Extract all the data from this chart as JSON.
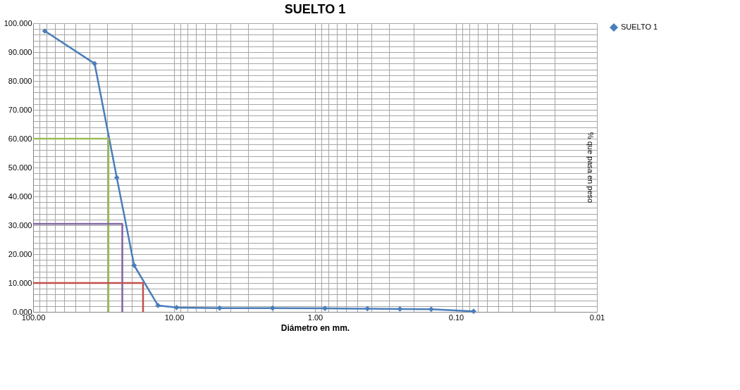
{
  "chart_data": {
    "type": "line",
    "title": "SUELTO 1",
    "xlabel": "Diámetro en mm.",
    "ylabel": "% que pasa en peso",
    "log": "x",
    "grid": true,
    "legend": "right",
    "marker": "diamond",
    "line_style": "solid",
    "xlim": [
      100,
      0.01
    ],
    "xticks": [
      {
        "value": 100,
        "label": "100.00"
      },
      {
        "value": 90,
        "label": null
      },
      {
        "value": 80,
        "label": null
      },
      {
        "value": 70,
        "label": null
      },
      {
        "value": 60,
        "label": null
      },
      {
        "value": 50,
        "label": null
      },
      {
        "value": 40,
        "label": null
      },
      {
        "value": 30,
        "label": null
      },
      {
        "value": 20,
        "label": null
      },
      {
        "value": 10,
        "label": "10.00"
      },
      {
        "value": 9,
        "label": null
      },
      {
        "value": 8,
        "label": null
      },
      {
        "value": 7,
        "label": null
      },
      {
        "value": 6,
        "label": null
      },
      {
        "value": 5,
        "label": null
      },
      {
        "value": 4,
        "label": null
      },
      {
        "value": 3,
        "label": null
      },
      {
        "value": 2,
        "label": null
      },
      {
        "value": 1,
        "label": "1.00"
      },
      {
        "value": 0.9,
        "label": null
      },
      {
        "value": 0.8,
        "label": null
      },
      {
        "value": 0.7,
        "label": null
      },
      {
        "value": 0.6,
        "label": null
      },
      {
        "value": 0.5,
        "label": null
      },
      {
        "value": 0.4,
        "label": null
      },
      {
        "value": 0.3,
        "label": null
      },
      {
        "value": 0.2,
        "label": null
      },
      {
        "value": 0.1,
        "label": "0.10"
      },
      {
        "value": 0.09,
        "label": null
      },
      {
        "value": 0.08,
        "label": null
      },
      {
        "value": 0.07,
        "label": null
      },
      {
        "value": 0.06,
        "label": null
      },
      {
        "value": 0.05,
        "label": null
      },
      {
        "value": 0.04,
        "label": null
      },
      {
        "value": 0.03,
        "label": null
      },
      {
        "value": 0.02,
        "label": null
      },
      {
        "value": 0.01,
        "label": "0.01"
      }
    ],
    "ylim": [
      0,
      100
    ],
    "yticks": [
      {
        "value": 0,
        "label": "0.000"
      },
      {
        "value": 2,
        "label": null
      },
      {
        "value": 4,
        "label": null
      },
      {
        "value": 6,
        "label": null
      },
      {
        "value": 8,
        "label": null
      },
      {
        "value": 10,
        "label": "10.000"
      },
      {
        "value": 12,
        "label": null
      },
      {
        "value": 14,
        "label": null
      },
      {
        "value": 16,
        "label": null
      },
      {
        "value": 18,
        "label": null
      },
      {
        "value": 20,
        "label": "20.000"
      },
      {
        "value": 22,
        "label": null
      },
      {
        "value": 24,
        "label": null
      },
      {
        "value": 26,
        "label": null
      },
      {
        "value": 28,
        "label": null
      },
      {
        "value": 30,
        "label": "30.000"
      },
      {
        "value": 32,
        "label": null
      },
      {
        "value": 34,
        "label": null
      },
      {
        "value": 36,
        "label": null
      },
      {
        "value": 38,
        "label": null
      },
      {
        "value": 40,
        "label": "40.000"
      },
      {
        "value": 42,
        "label": null
      },
      {
        "value": 44,
        "label": null
      },
      {
        "value": 46,
        "label": null
      },
      {
        "value": 48,
        "label": null
      },
      {
        "value": 50,
        "label": "50.000"
      },
      {
        "value": 52,
        "label": null
      },
      {
        "value": 54,
        "label": null
      },
      {
        "value": 56,
        "label": null
      },
      {
        "value": 58,
        "label": null
      },
      {
        "value": 60,
        "label": "60.000"
      },
      {
        "value": 62,
        "label": null
      },
      {
        "value": 64,
        "label": null
      },
      {
        "value": 66,
        "label": null
      },
      {
        "value": 68,
        "label": null
      },
      {
        "value": 70,
        "label": "70.000"
      },
      {
        "value": 72,
        "label": null
      },
      {
        "value": 74,
        "label": null
      },
      {
        "value": 76,
        "label": null
      },
      {
        "value": 78,
        "label": null
      },
      {
        "value": 80,
        "label": "80.000"
      },
      {
        "value": 82,
        "label": null
      },
      {
        "value": 84,
        "label": null
      },
      {
        "value": 86,
        "label": null
      },
      {
        "value": 88,
        "label": null
      },
      {
        "value": 90,
        "label": "90.000"
      },
      {
        "value": 92,
        "label": null
      },
      {
        "value": 94,
        "label": null
      },
      {
        "value": 96,
        "label": null
      },
      {
        "value": 98,
        "label": null
      },
      {
        "value": 100,
        "label": "100.000"
      }
    ],
    "series": [
      {
        "name": "SUELTO 1",
        "color": "#4a7ebb",
        "x": [
          82.6,
          36.6,
          25.5,
          19.2,
          13.0,
          9.6,
          4.75,
          2.0,
          0.85,
          0.425,
          0.25,
          0.15,
          0.075
        ],
        "values": [
          97.3,
          86.0,
          46.5,
          16.1,
          2.2,
          1.5,
          1.3,
          1.3,
          1.2,
          1.1,
          1.0,
          0.9,
          0.2
        ]
      },
      {
        "color": "#9bbb59",
        "marker": "none",
        "x": [
          100,
          29.2,
          29.2
        ],
        "values": [
          60,
          60,
          0
        ]
      },
      {
        "color": "#8064a2",
        "marker": "none",
        "x": [
          100,
          23.3,
          23.3
        ],
        "values": [
          30.5,
          30.5,
          0
        ]
      },
      {
        "color": "#c0504d",
        "marker": "none",
        "x": [
          100,
          16.6,
          16.6
        ],
        "values": [
          10,
          10,
          0
        ]
      }
    ]
  }
}
